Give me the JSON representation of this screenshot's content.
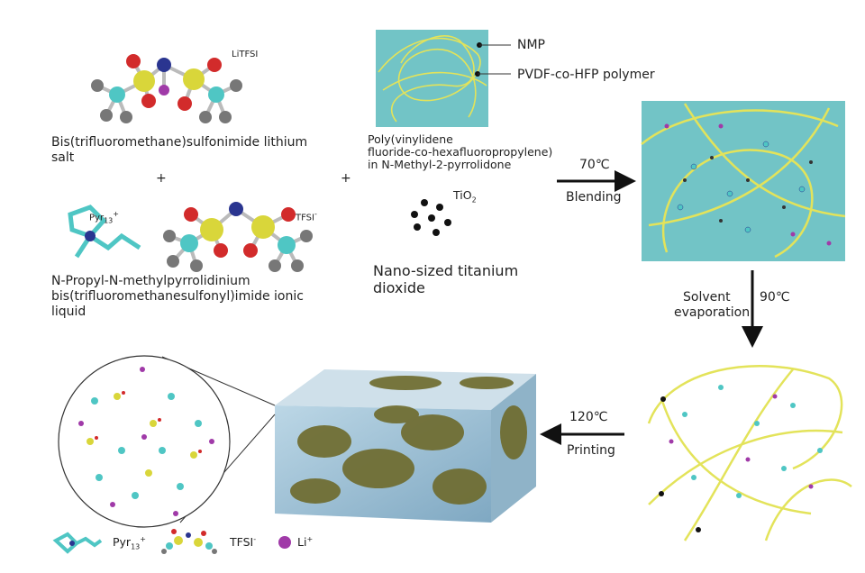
{
  "reagents": {
    "litfsi": {
      "tag": "LiTFSI",
      "name_lines": [
        "Bis(trifluoromethane)sulfonimide lithium",
        "salt"
      ]
    },
    "plus": "+",
    "pyr13": {
      "tag": "Pyr",
      "tag_sub": "13",
      "tag_sup": "+"
    },
    "tfsi": {
      "tag": "TFSI",
      "tag_sup": "-"
    },
    "ionic_liquid_lines": [
      "N-Propyl-N-methylpyrrolidinium",
      "bis(trifluoromethanesulfonyl)imide ionic",
      "liquid"
    ],
    "polymer_solution": {
      "callouts": [
        "NMP",
        "PVDF-co-HFP polymer"
      ],
      "name_lines": [
        "Poly(vinylidene",
        "fluoride-co-hexafluoropropylene)",
        "in N-Methyl-2-pyrrolidone"
      ]
    },
    "tio2": {
      "tag": "TiO",
      "tag_sub": "2",
      "name_lines": [
        "Nano-sized titanium",
        "dioxide"
      ]
    }
  },
  "steps": [
    {
      "temp": "70℃",
      "label": "Blending"
    },
    {
      "temp": "90℃",
      "label_lines": [
        "Solvent",
        "evaporation"
      ]
    },
    {
      "temp": "120℃",
      "label": "Printing"
    }
  ],
  "legend": [
    {
      "label": "Pyr",
      "sub": "13",
      "sup": "+"
    },
    {
      "label": "TFSI",
      "sup": "-"
    },
    {
      "label": "Li",
      "sup": "+"
    }
  ],
  "colors": {
    "solution": "#72c4c6",
    "polymer": "#e3e35a",
    "carbon": "#4fc6c4",
    "sulfur": "#d9d63a",
    "oxygen": "#d22b2b",
    "nitrogen": "#2a3590",
    "fluorine": "#7a7a7a",
    "lithium": "#a03aa8",
    "printed_block": "#6f6c2f"
  }
}
